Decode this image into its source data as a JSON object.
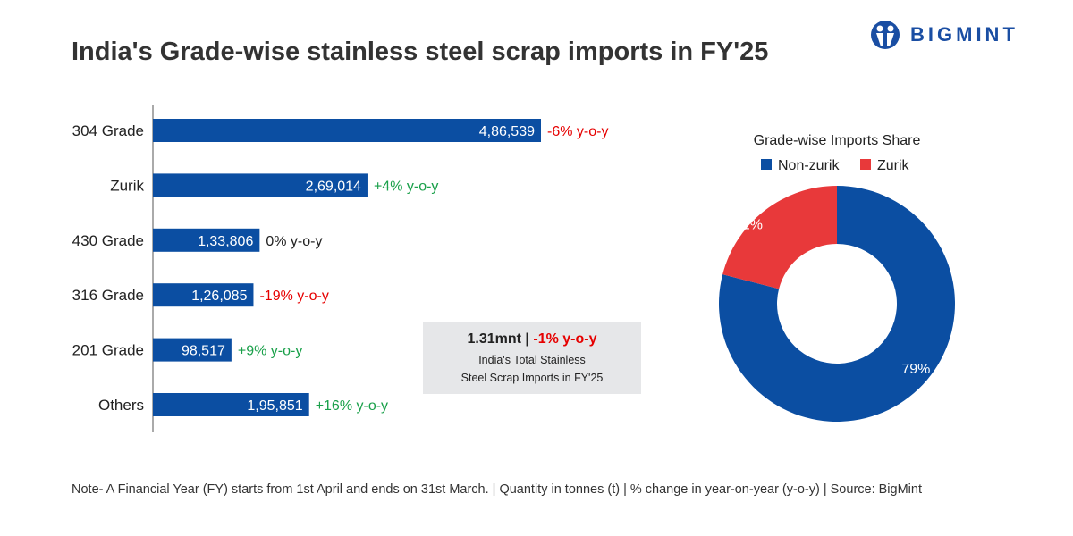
{
  "title": "India's Grade-wise stainless steel scrap imports in FY'25",
  "logo": "BIGMINT",
  "summary": {
    "value": "1.31mnt",
    "sep": "|",
    "change": "-1% y-o-y",
    "line1": "India's Total Stainless",
    "line2": "Steel Scrap Imports in FY'25"
  },
  "note": "Note- A Financial Year (FY) starts from 1st April and ends on 31st March. | Quantity in tonnes (t) | % change in year-on-year (y-o-y) | Source: BigMint",
  "colors": {
    "bar": "#0b4ea2",
    "red": "#e8393a",
    "pos": "#1aa04a",
    "neg": "#e60000",
    "neutral": "#222222"
  },
  "chart_data": [
    {
      "type": "bar",
      "orientation": "horizontal",
      "categories": [
        "304 Grade",
        "Zurik",
        "430 Grade",
        "316 Grade",
        "201 Grade",
        "Others"
      ],
      "values": [
        486539,
        269014,
        133806,
        126085,
        98517,
        195851
      ],
      "value_labels": [
        "4,86,539",
        "2,69,014",
        "1,33,806",
        "1,26,085",
        "98,517",
        "1,95,851"
      ],
      "yoy": [
        "-6% y-o-y",
        "+4% y-o-y",
        "0% y-o-y",
        "-19% y-o-y",
        "+9% y-o-y",
        "+16% y-o-y"
      ],
      "yoy_sign": [
        "neg",
        "pos",
        "neutral",
        "neg",
        "pos",
        "pos"
      ]
    },
    {
      "type": "pie",
      "title": "Grade-wise Imports Share",
      "donut": true,
      "labels": [
        "Non-zurik",
        "Zurik"
      ],
      "values": [
        79,
        21
      ],
      "value_labels": [
        "79%",
        "21%"
      ],
      "legend": "top"
    }
  ]
}
